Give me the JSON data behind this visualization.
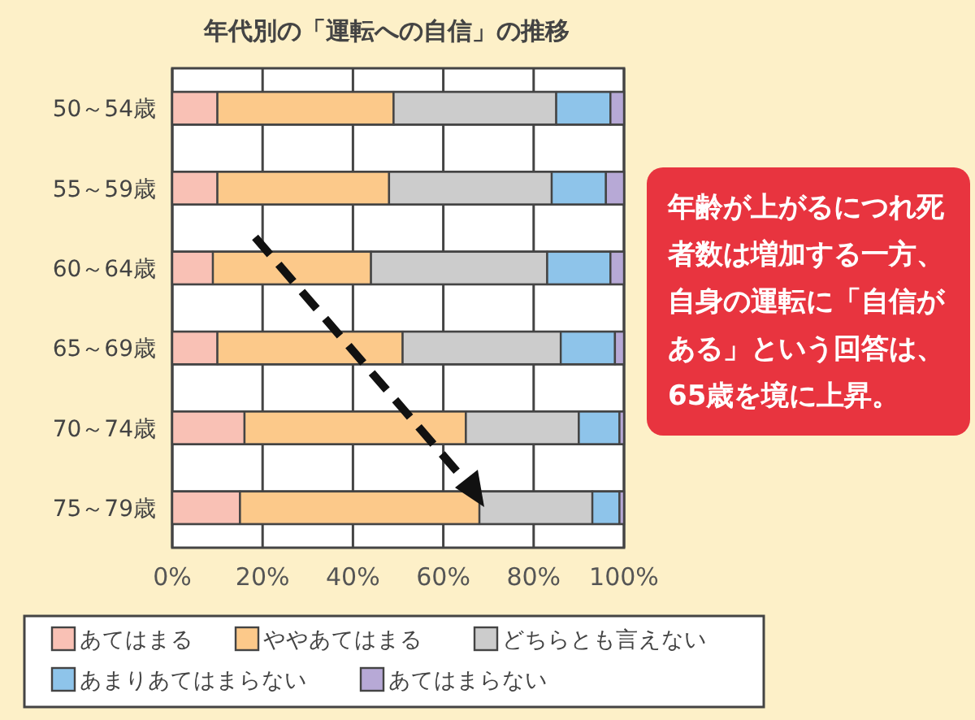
{
  "chart_data": {
    "type": "bar",
    "orientation": "horizontal",
    "stacked": true,
    "title": "年代別の「運転への自信」の推移",
    "categories": [
      "50～54歳",
      "55～59歳",
      "60～64歳",
      "65～69歳",
      "70～74歳",
      "75～79歳"
    ],
    "series": [
      {
        "name": "あてはまる",
        "color": "#f9c1b5",
        "values": [
          10,
          10,
          9,
          10,
          16,
          15
        ]
      },
      {
        "name": "ややあてはまる",
        "color": "#fcc98a",
        "values": [
          39,
          38,
          35,
          41,
          49,
          53
        ]
      },
      {
        "name": "どちらとも言えない",
        "color": "#cccccc",
        "values": [
          36,
          36,
          39,
          35,
          25,
          25
        ]
      },
      {
        "name": "あまりあてはまらない",
        "color": "#8ec4ea",
        "values": [
          12,
          12,
          14,
          12,
          9,
          6
        ]
      },
      {
        "name": "あてはまらない",
        "color": "#b7a9d6",
        "values": [
          3,
          4,
          3,
          2,
          1,
          1
        ]
      }
    ],
    "xlim": [
      0,
      100
    ],
    "xticks": [
      {
        "value": 0,
        "label": "0%"
      },
      {
        "value": 20,
        "label": "20%"
      },
      {
        "value": 40,
        "label": "40%"
      },
      {
        "value": 60,
        "label": "60%"
      },
      {
        "value": 80,
        "label": "80%"
      },
      {
        "value": 100,
        "label": "100%"
      }
    ],
    "grid": true,
    "legend": "bottom",
    "annotations": [
      "年齢が上がるにつれ死者数は増加する一方、自身の運転に「自信がある」という回答は、65歳を境に上昇。"
    ]
  }
}
